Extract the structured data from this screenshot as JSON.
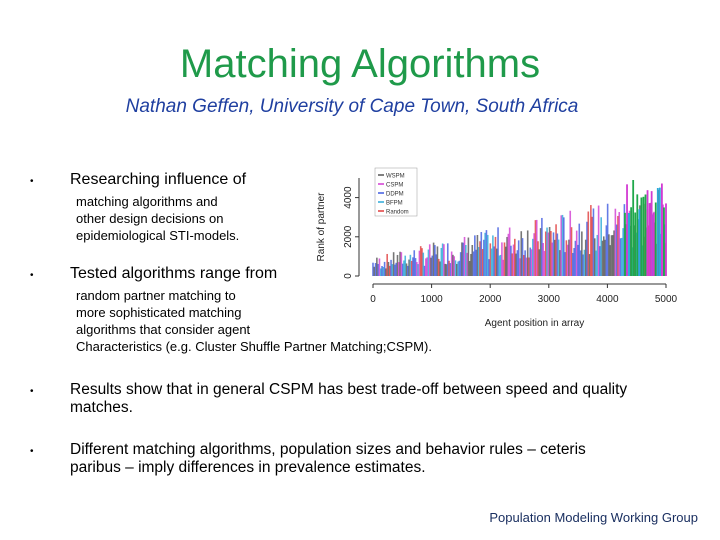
{
  "slide": {
    "title": "Matching Algorithms",
    "subtitle": "Nathan Geffen, University of Cape Town, South Africa",
    "bullets": [
      {
        "head": "Researching influence of",
        "sub": [
          "matching algorithms and",
          "other design decisions on",
          "epidemiological STI-models."
        ]
      },
      {
        "head": "Tested algorithms range from",
        "sub": [
          "random partner matching to",
          "more sophisticated matching",
          "algorithms that consider agent",
          "Characteristics (e.g. Cluster Shuffle Partner Matching;CSPM)."
        ]
      },
      {
        "body": [
          "Results show that in general CSPM has best trade-off between speed and quality",
          "matches."
        ]
      },
      {
        "body": [
          "Different matching algorithms, population sizes and behavior rules – ceteris",
          "paribus – imply differences in prevalence estimates."
        ]
      }
    ],
    "bullet_symbol": "•",
    "footer": "Population Modeling Working Group"
  },
  "chart_data": {
    "type": "line",
    "xlabel": "Agent position in array",
    "ylabel": "Rank of partner",
    "x_ticks": [
      "0",
      "1000",
      "2000",
      "3000",
      "4000",
      "5000"
    ],
    "y_ticks": [
      "0",
      "2000",
      "4000"
    ],
    "xlim": [
      0,
      5000
    ],
    "ylim": [
      0,
      5000
    ],
    "legend_position": "top-left",
    "series": [
      {
        "name": "WSPM",
        "color": "#555555"
      },
      {
        "name": "CSPM",
        "color": "#d23bd2"
      },
      {
        "name": "DDPM",
        "color": "#3f5be0"
      },
      {
        "name": "BFPM",
        "color": "#2aa9d8"
      },
      {
        "name": "Random",
        "color": "#e03c3c"
      }
    ]
  },
  "colors": {
    "title": "#1f9a4a",
    "subtitle": "#1f3fa0",
    "footer": "#1a2f60"
  }
}
